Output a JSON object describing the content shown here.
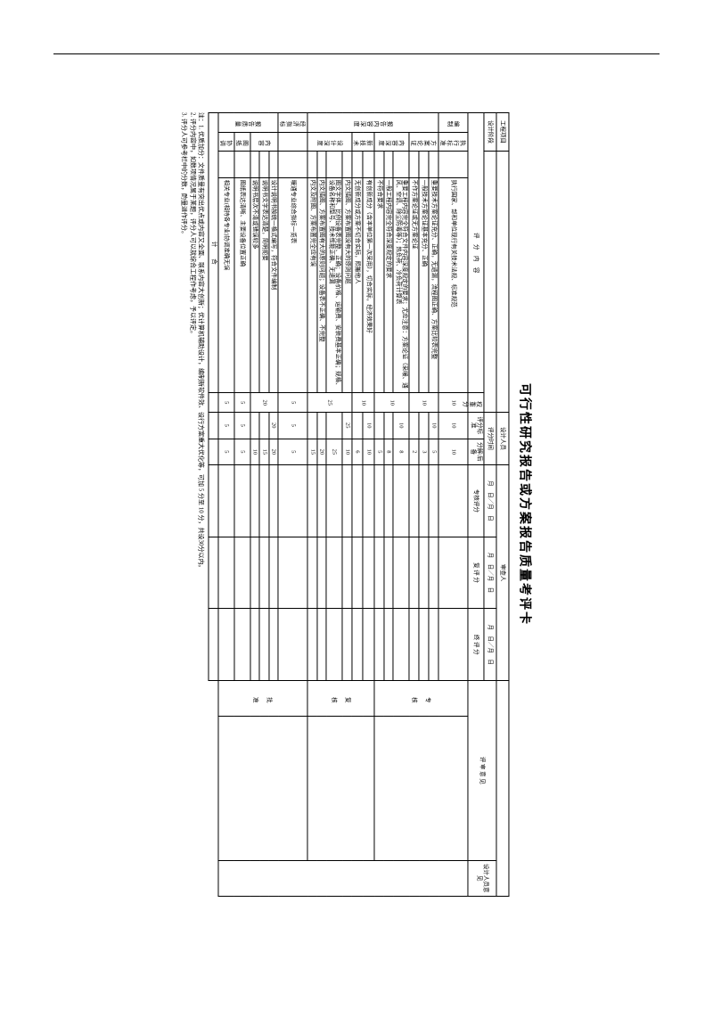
{
  "title": "可行性研究报告或方案报告质量考评卡",
  "header": {
    "project_label": "工程项目",
    "design_stage_label": "设计阶段",
    "designer_label": "设计人员",
    "reviewer_label": "审查人",
    "score_date_label": "评分时间",
    "date_fmt": "月　日／月　日",
    "col_content": "评　分　内　容",
    "col_weight": "权重分",
    "col_item_score": "评分标准",
    "col_item_sub": "分解/后备",
    "col_spec_score": "专核评分",
    "col_recheck": "复 评 分",
    "col_final": "终 评 分",
    "col_stage": "阶段",
    "col_opinion": "评 审 意 见",
    "col_designer_feedback": "设计人员意见"
  },
  "groups": [
    {
      "cat": "编制",
      "name": "执行标准",
      "rows": [
        {
          "text": "执行国家、部和单位现行有关技术法规、标准规范",
          "w": "10",
          "std": "10"
        }
      ]
    },
    {
      "cat": "报告内容深度",
      "name": "方案论证",
      "w": "10",
      "rows": [
        {
          "text": "重要技术方案论证充分、正确，无遗漏，流程图正确、方案比较表完整",
          "std": "5"
        },
        {
          "text": "一般技术方案论证基本充分、正确",
          "std": "3"
        },
        {
          "text": "不作方案论证或无方案论证",
          "std": "2"
        }
      ]
    },
    {
      "cat": "报告内容深度",
      "name": "内容深度",
      "w": "10",
      "rows": [
        {
          "text": "重要工程内容完全符合文件内容深度规定的要求；尤应注意：方案论证（采暖、通风、空调、除尘防毒等）；热负荷、冷负荷计算表",
          "std": "8"
        },
        {
          "text": "一般工程内容完全符合深度规定的要求",
          "std": "8"
        },
        {
          "text": "不符合要求",
          "std": "5"
        }
      ]
    },
    {
      "cat": "报告内容深度",
      "name": "新技术",
      "w": "10",
      "rows": [
        {
          "text": "有创新成分（含本单位第一次采用），切合实际，经济效果好",
          "std": "10"
        },
        {
          "text": "无创新成分或方案不切合实际，照搬他人",
          "std": "6"
        }
      ]
    },
    {
      "cat": "报告内容深度",
      "name": "设计深度",
      "w": "25",
      "rows": [
        {
          "text": "内文插图、方案布置图没有大的原则问题",
          "std": "10"
        },
        {
          "text": "图文字体、比例设备表完整、正确；设备价格、运输费、安装费基本正确；规格、设备名称和型号、技术性能正确、无遗漏",
          "std": "25"
        },
        {
          "text": "内文插图、方案布置图有大的原则问题；设备表不正确、不完整",
          "std": "20"
        },
        {
          "text": "内文及附图、方案布置完全应有误",
          "std": "15"
        }
      ]
    },
    {
      "cat": "经济指标",
      "name": "",
      "w": "5",
      "rows": [
        {
          "text": "暖通专业综合指标一览表",
          "std": "5"
        }
      ]
    },
    {
      "cat": "报告质量",
      "name": "内容",
      "w": "20",
      "rows": [
        {
          "text": "设计说明书按统一格式编写，符合文件编制",
          "std": "20"
        },
        {
          "text": "说明书文字表达清楚，简明扼要",
          "std": "15"
        },
        {
          "text": "说明书层次不清或错误较多",
          "std": "10"
        }
      ]
    },
    {
      "cat": "报告质量",
      "name": "图纸",
      "w": "5",
      "rows": [
        {
          "text": "图纸表达清晰、主要设备位置正确",
          "std": "5"
        }
      ]
    },
    {
      "cat": "报告质量",
      "name": "协调",
      "w": "5",
      "rows": [
        {
          "text": "相关专业(相持各专业)协调准确无误",
          "std": "5"
        }
      ]
    }
  ],
  "total_label": "计　　合",
  "stages": [
    "专 核",
    "复 核",
    "批 准"
  ],
  "notes": [
    "注：1. 优质加分：文件质量有突出优点或内容又全面、联系内容大创新；优计算机辅助设计，编制新软件效、设行方案重大优化等，可加 5 分至 10 分，共设30分以内。",
    "2. 评分内容中，如数项情况属于某题，评分人可以就综合工程作考虑，予以评定。",
    "3. 评分人可参考栏中的分数，酌量进作评分。"
  ]
}
